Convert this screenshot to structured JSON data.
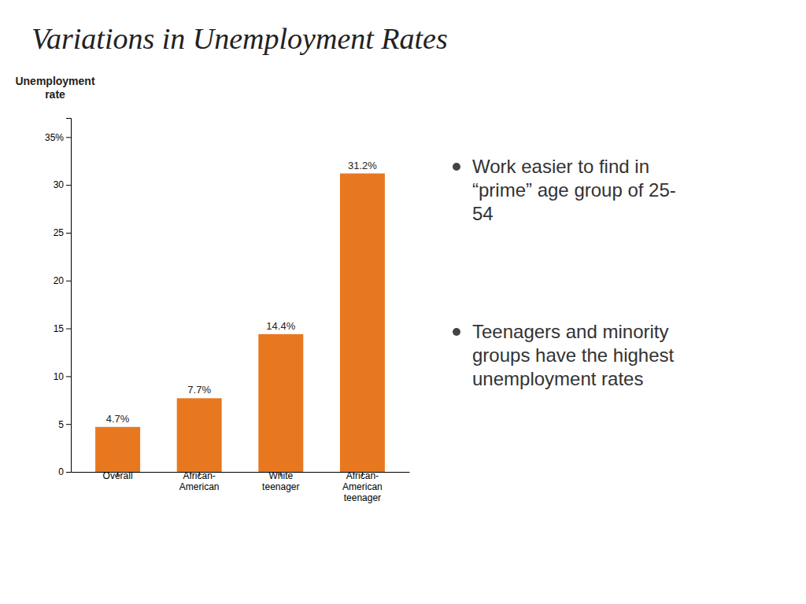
{
  "chart_data": {
    "type": "bar",
    "title": "Variations in Unemployment Rates",
    "ylabel": "Unemployment\nrate",
    "categories": [
      "Overall",
      "African-\nAmerican",
      "White\nteenager",
      "African-\nAmerican\nteenager"
    ],
    "values": [
      4.7,
      7.7,
      14.4,
      31.2
    ],
    "value_labels": [
      "4.7%",
      "7.7%",
      "14.4%",
      "31.2%"
    ],
    "data_labels": true,
    "color": "#e87820",
    "ylim": [
      0,
      37
    ],
    "yticks": [
      0,
      5,
      10,
      15,
      20,
      25,
      30,
      {
        "value": 35,
        "label": "35%"
      }
    ],
    "grid": false,
    "annotations": [
      "Work easier to find in\n“prime” age group of 25-\n54",
      "Teenagers and minority\ngroups have the highest\nunemployment rates"
    ]
  }
}
